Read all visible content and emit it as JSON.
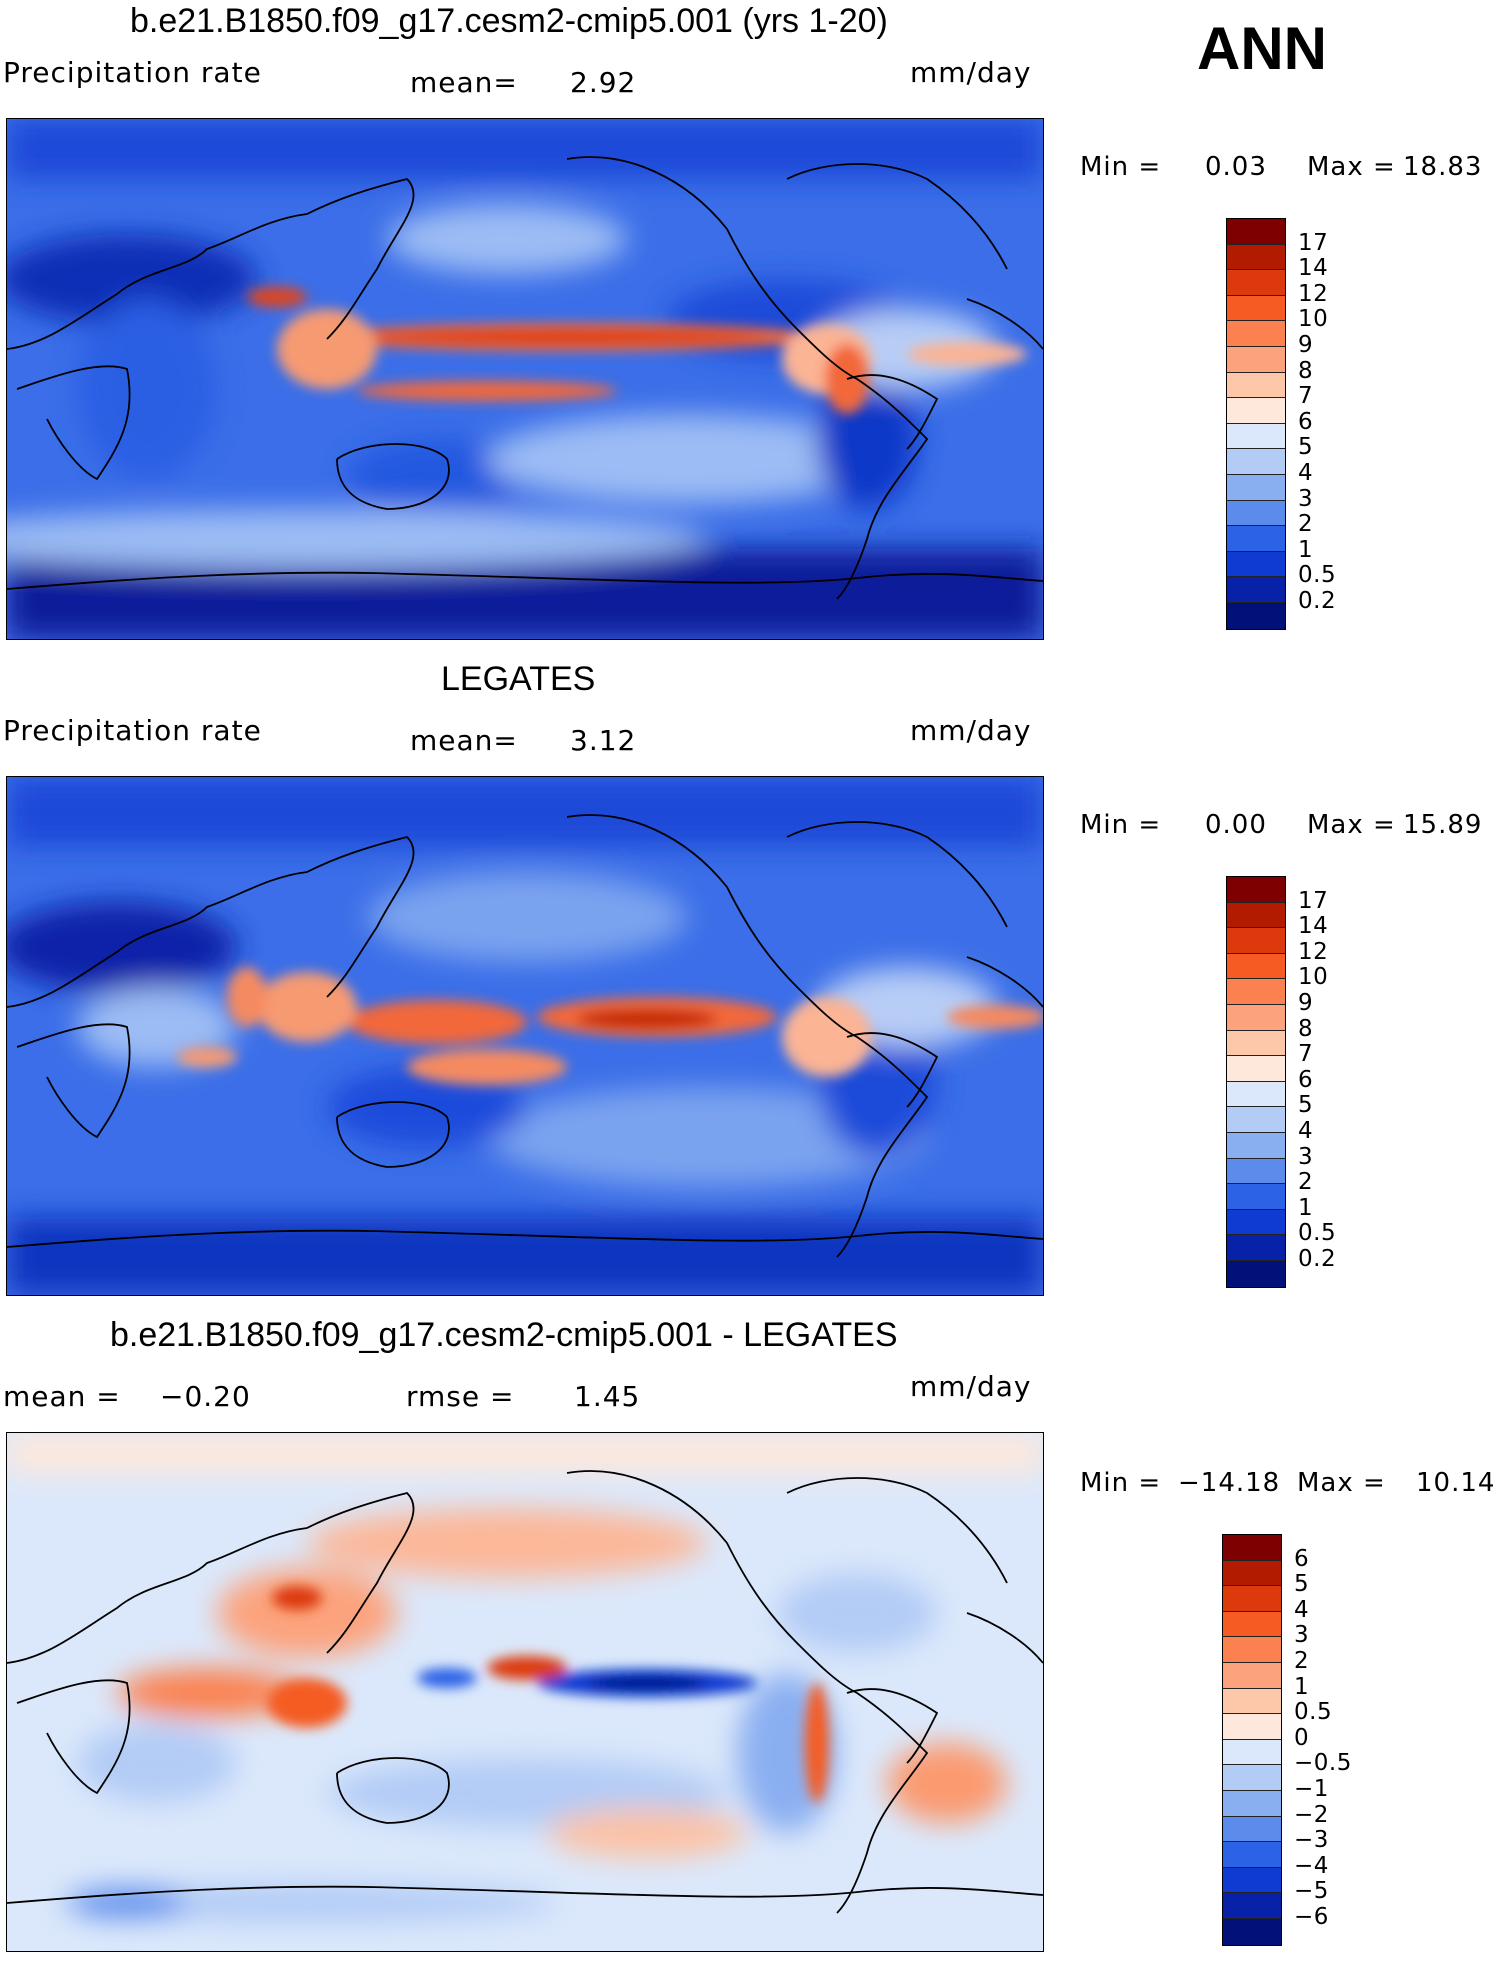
{
  "season": "ANN",
  "panels": [
    {
      "title": "b.e21.B1850.f09_g17.cesm2-cmip5.001 (yrs 1-20)",
      "left_text": "Precipitation rate",
      "mid_label": "mean=",
      "mid_value": "2.92",
      "unit": "mm/day",
      "min_label": "Min =",
      "min_value": "0.03",
      "max_label": "Max =",
      "max_value": "18.83",
      "colorbar_labels": [
        "17",
        "14",
        "12",
        "10",
        "9",
        "8",
        "7",
        "6",
        "5",
        "4",
        "3",
        "2",
        "1",
        "0.5",
        "0.2"
      ],
      "colorbar_colors": [
        "#7f0000",
        "#b31b00",
        "#dc3a0c",
        "#f55b22",
        "#fb8150",
        "#fca37d",
        "#fdc7a9",
        "#fee8dc",
        "#dbe8fb",
        "#b3ccf6",
        "#8aaff1",
        "#5b8cec",
        "#2c62e6",
        "#0f3bd2",
        "#0722a8",
        "#02117a"
      ]
    },
    {
      "title": "LEGATES",
      "left_text": "Precipitation rate",
      "mid_label": "mean=",
      "mid_value": "3.12",
      "unit": "mm/day",
      "min_label": "Min =",
      "min_value": "0.00",
      "max_label": "Max =",
      "max_value": "15.89",
      "colorbar_labels": [
        "17",
        "14",
        "12",
        "10",
        "9",
        "8",
        "7",
        "6",
        "5",
        "4",
        "3",
        "2",
        "1",
        "0.5",
        "0.2"
      ],
      "colorbar_colors": [
        "#7f0000",
        "#b31b00",
        "#dc3a0c",
        "#f55b22",
        "#fb8150",
        "#fca37d",
        "#fdc7a9",
        "#fee8dc",
        "#dbe8fb",
        "#b3ccf6",
        "#8aaff1",
        "#5b8cec",
        "#2c62e6",
        "#0f3bd2",
        "#0722a8",
        "#02117a"
      ]
    },
    {
      "title": "b.e21.B1850.f09_g17.cesm2-cmip5.001 - LEGATES",
      "left_label": "mean =",
      "left_value": "−0.20",
      "mid_label": "rmse =",
      "mid_value": "1.45",
      "unit": "mm/day",
      "min_label": "Min =",
      "min_value": "−14.18",
      "max_label": "Max =",
      "max_value": "10.14",
      "colorbar_labels": [
        "6",
        "5",
        "4",
        "3",
        "2",
        "1",
        "0.5",
        "0",
        "−0.5",
        "−1",
        "−2",
        "−3",
        "−4",
        "−5",
        "−6"
      ],
      "colorbar_colors": [
        "#7f0000",
        "#b31b00",
        "#dc3a0c",
        "#f55b22",
        "#fb8150",
        "#fca37d",
        "#fdc7a9",
        "#fee8dc",
        "#dbe8fb",
        "#b3ccf6",
        "#8aaff1",
        "#5b8cec",
        "#2c62e6",
        "#0f3bd2",
        "#0722a8",
        "#02117a"
      ]
    }
  ]
}
